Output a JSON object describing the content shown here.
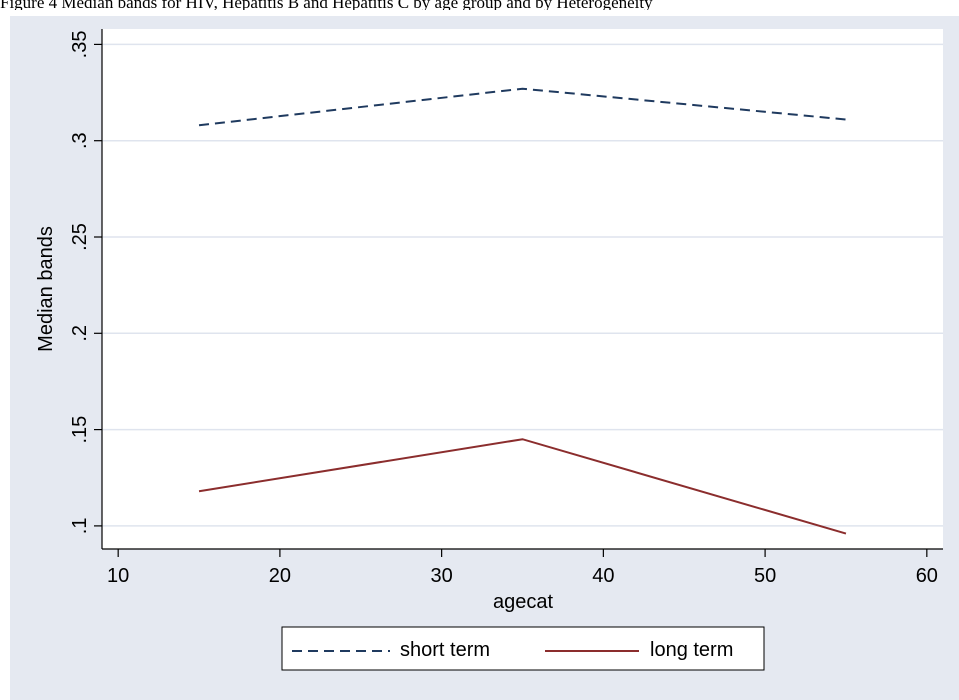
{
  "caption": "Figure 4 Median bands for HIV, Hepatitis B and Hepatitis C by age group and by Heterogeneity",
  "colors": {
    "background": "#e5e9f1",
    "plot_background": "#ffffff",
    "short_term": "#1f3a5f",
    "long_term": "#8b2d2d",
    "grid": "#dfe4ee"
  },
  "chart_data": {
    "type": "line",
    "title": "",
    "xlabel": "agecat",
    "ylabel": "Median bands",
    "xlim": [
      9,
      61
    ],
    "ylim": [
      0.088,
      0.358
    ],
    "xticks": [
      10,
      20,
      30,
      40,
      50,
      60
    ],
    "xtick_labels": [
      "10",
      "20",
      "30",
      "40",
      "50",
      "60"
    ],
    "yticks": [
      0.1,
      0.15,
      0.2,
      0.25,
      0.3,
      0.35
    ],
    "ytick_labels": [
      ".1",
      ".15",
      ".2",
      ".25",
      ".3",
      ".35"
    ],
    "grid": true,
    "legend_position": "bottom",
    "series": [
      {
        "name": "short term",
        "style": "dashed",
        "x": [
          15,
          35,
          55
        ],
        "y": [
          0.308,
          0.327,
          0.311
        ]
      },
      {
        "name": "long term",
        "style": "solid",
        "x": [
          15,
          35,
          55
        ],
        "y": [
          0.118,
          0.145,
          0.096
        ]
      }
    ]
  }
}
